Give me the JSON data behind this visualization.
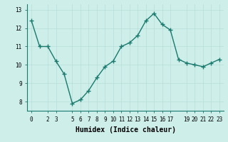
{
  "x": [
    0,
    1,
    2,
    3,
    4,
    5,
    6,
    7,
    8,
    9,
    10,
    11,
    12,
    13,
    14,
    15,
    16,
    17,
    18,
    19,
    20,
    21,
    22,
    23
  ],
  "y": [
    12.4,
    11.0,
    11.0,
    10.2,
    9.5,
    7.9,
    8.1,
    8.6,
    9.3,
    9.9,
    10.2,
    11.0,
    11.2,
    11.6,
    12.4,
    12.8,
    12.2,
    11.9,
    10.3,
    10.1,
    10.0,
    9.9,
    10.1,
    10.3
  ],
  "line_color": "#1a7a6e",
  "marker": "+",
  "marker_size": 4,
  "bg_color": "#cdeee9",
  "grid_color": "#b8ddd8",
  "xlabel": "Humidex (Indice chaleur)",
  "xlabel_fontsize": 7,
  "ylim": [
    7.5,
    13.3
  ],
  "xlim": [
    -0.5,
    23.5
  ],
  "yticks": [
    8,
    9,
    10,
    11,
    12,
    13
  ],
  "xtick_positions": [
    0,
    2,
    3,
    5,
    6,
    7,
    8,
    9,
    10,
    11,
    12,
    13,
    14,
    15,
    16,
    17,
    19,
    20,
    21,
    22,
    23
  ],
  "xtick_labels": [
    "0",
    "2",
    "3",
    "5",
    "6",
    "7",
    "8",
    "9",
    "10",
    "11",
    "12",
    "13",
    "14",
    "15",
    "16",
    "17",
    "19",
    "20",
    "21",
    "22",
    "23"
  ],
  "tick_fontsize": 5.5,
  "line_width": 1.0
}
